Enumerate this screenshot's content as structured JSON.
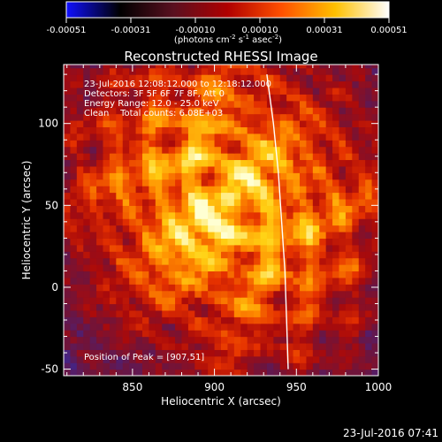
{
  "chart_data": {
    "type": "heatmap",
    "title": "Reconstructed RHESSI Image",
    "xlabel": "Heliocentric X (arcsec)",
    "ylabel": "Heliocentric Y (arcsec)",
    "xlim": [
      810,
      1000
    ],
    "ylim": [
      -50,
      130
    ],
    "x_ticks": [
      850,
      900,
      950,
      1000
    ],
    "y_ticks": [
      -50,
      0,
      50,
      100
    ],
    "colorbar": {
      "ticks": [
        "-0.00051",
        "-0.00031",
        "-0.00010",
        "0.00010",
        "0.00031",
        "0.00051"
      ],
      "unit_label": "(photons cm",
      "unit_sup1": "-2",
      "unit_mid": " s",
      "unit_sup2": "-1",
      "unit_end": " asec",
      "unit_sup3": "-2",
      "unit_close": ")",
      "colors": [
        "#1010ff",
        "#000000",
        "#5a1020",
        "#b00000",
        "#ff5000",
        "#ffc000",
        "#ffffff"
      ]
    },
    "info_lines": [
      "23-Jul-2016 12:08:12.000 to 12:18:12.000",
      "Detectors: 3F 5F 6F 7F 8F, Att 0",
      "Energy Range: 12.0 - 25.0 keV",
      "Clean    Total counts: 6.08E+03"
    ],
    "peak_label": "Position of Peak = [907,51]",
    "peak": [
      907,
      51
    ],
    "limb_x": [
      932,
      936,
      939,
      941,
      943,
      944,
      945
    ],
    "limb_y": [
      130,
      100,
      70,
      40,
      10,
      -20,
      -50
    ]
  },
  "footer": {
    "timestamp": "23-Jul-2016 07:41"
  }
}
